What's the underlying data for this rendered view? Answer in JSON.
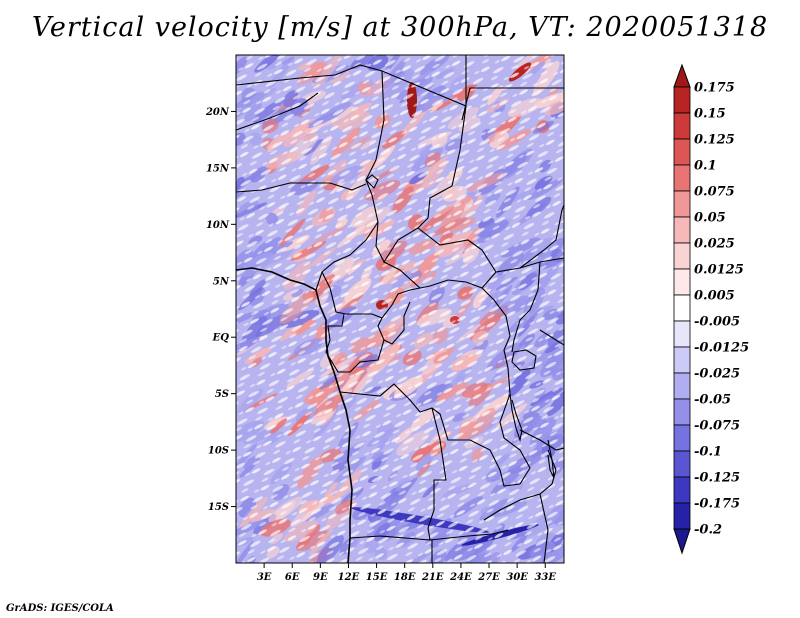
{
  "title": "Vertical velocity [m/s] at 300hPa, VT: 2020051318",
  "credit": "GrADS: IGES/COLA",
  "map": {
    "lat_range": [
      -20,
      25
    ],
    "lon_range": [
      0,
      35
    ],
    "lat_ticks": [
      {
        "value": 20,
        "label": "20N"
      },
      {
        "value": 15,
        "label": "15N"
      },
      {
        "value": 10,
        "label": "10N"
      },
      {
        "value": 5,
        "label": "5N"
      },
      {
        "value": 0,
        "label": "EQ"
      },
      {
        "value": -5,
        "label": "5S"
      },
      {
        "value": -10,
        "label": "10S"
      },
      {
        "value": -15,
        "label": "15S"
      }
    ],
    "lon_ticks": [
      {
        "value": 3,
        "label": "3E"
      },
      {
        "value": 6,
        "label": "6E"
      },
      {
        "value": 9,
        "label": "9E"
      },
      {
        "value": 12,
        "label": "12E"
      },
      {
        "value": 15,
        "label": "15E"
      },
      {
        "value": 18,
        "label": "18E"
      },
      {
        "value": 21,
        "label": "21E"
      },
      {
        "value": 24,
        "label": "24E"
      },
      {
        "value": 27,
        "label": "27E"
      },
      {
        "value": 30,
        "label": "30E"
      },
      {
        "value": 33,
        "label": "33E"
      }
    ]
  },
  "colorbar": {
    "levels": [
      {
        "label": "0.175",
        "color": "#a01818"
      },
      {
        "label": "0.15",
        "color": "#b82424"
      },
      {
        "label": "0.125",
        "color": "#cc3a3a"
      },
      {
        "label": "0.1",
        "color": "#dc5656"
      },
      {
        "label": "0.075",
        "color": "#e87474"
      },
      {
        "label": "0.05",
        "color": "#f09898"
      },
      {
        "label": "0.025",
        "color": "#f6b8b8"
      },
      {
        "label": "0.0125",
        "color": "#fad4d4"
      },
      {
        "label": "0.005",
        "color": "#fde9e9"
      },
      {
        "label": "-0.005",
        "color": "#ffffff"
      },
      {
        "label": "-0.0125",
        "color": "#e6e6fa"
      },
      {
        "label": "-0.025",
        "color": "#cccaf6"
      },
      {
        "label": "-0.05",
        "color": "#b0aef0"
      },
      {
        "label": "-0.075",
        "color": "#9490ea"
      },
      {
        "label": "-0.1",
        "color": "#7672e0"
      },
      {
        "label": "-0.125",
        "color": "#5a56d2"
      },
      {
        "label": "-0.175",
        "color": "#3d38bf"
      },
      {
        "label": "-0.2",
        "color": "#2622a8"
      }
    ],
    "top_color": "#a01818",
    "bottom_color": "#1c1890"
  }
}
